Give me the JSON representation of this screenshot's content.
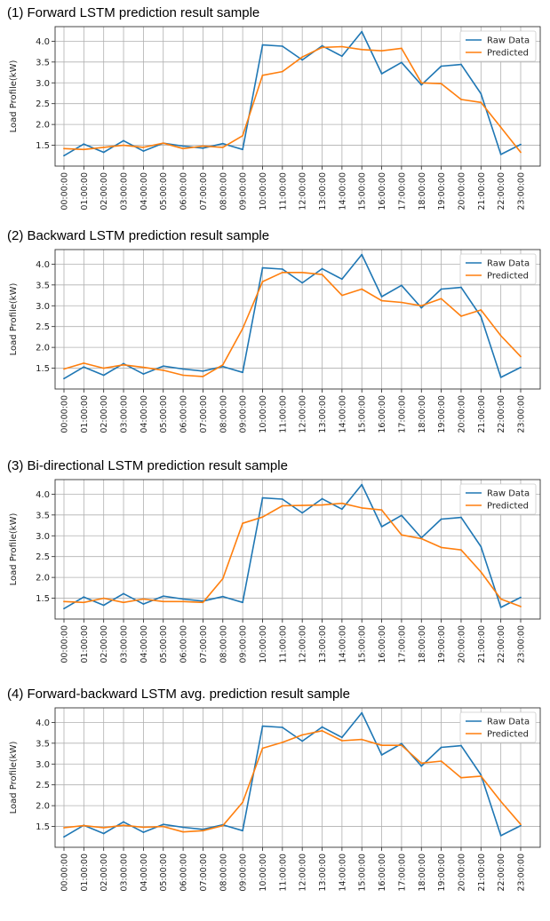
{
  "colors": {
    "raw": "#1f77b4",
    "predicted": "#ff7f0e",
    "grid": "#b0b0b0"
  },
  "chart_data": [
    {
      "type": "line",
      "title": "(1) Forward LSTM prediction result sample",
      "xlabel": "",
      "ylabel": "Load Profile(kW)",
      "ylim": [
        1.0,
        4.35
      ],
      "yticks": [
        1.5,
        2.0,
        2.5,
        3.0,
        3.5,
        4.0
      ],
      "ytick_labels": [
        "1.5",
        "2.0",
        "2.5",
        "3.0",
        "3.5",
        "4.0"
      ],
      "grid": true,
      "legend": "top-right",
      "categories": [
        "00:00:00",
        "01:00:00",
        "02:00:00",
        "03:00:00",
        "04:00:00",
        "05:00:00",
        "06:00:00",
        "07:00:00",
        "08:00:00",
        "09:00:00",
        "10:00:00",
        "11:00:00",
        "12:00:00",
        "13:00:00",
        "14:00:00",
        "15:00:00",
        "16:00:00",
        "17:00:00",
        "18:00:00",
        "19:00:00",
        "20:00:00",
        "21:00:00",
        "22:00:00",
        "23:00:00"
      ],
      "series": [
        {
          "name": "Raw Data",
          "color": "#1f77b4",
          "values": [
            1.25,
            1.53,
            1.33,
            1.61,
            1.36,
            1.55,
            1.48,
            1.43,
            1.54,
            1.4,
            3.91,
            3.88,
            3.55,
            3.89,
            3.64,
            4.23,
            3.22,
            3.49,
            2.95,
            3.4,
            3.44,
            2.74,
            1.28,
            1.52
          ]
        },
        {
          "name": "Predicted",
          "color": "#ff7f0e",
          "values": [
            1.42,
            1.4,
            1.45,
            1.5,
            1.45,
            1.55,
            1.42,
            1.48,
            1.45,
            1.73,
            3.18,
            3.27,
            3.62,
            3.85,
            3.87,
            3.8,
            3.77,
            3.83,
            3.0,
            2.98,
            2.6,
            2.53,
            1.93,
            1.33
          ]
        }
      ]
    },
    {
      "type": "line",
      "title": "(2) Backward LSTM prediction result sample",
      "xlabel": "",
      "ylabel": "Load Profile(kW)",
      "ylim": [
        1.0,
        4.35
      ],
      "yticks": [
        1.5,
        2.0,
        2.5,
        3.0,
        3.5,
        4.0
      ],
      "ytick_labels": [
        "1.5",
        "2.0",
        "2.5",
        "3.0",
        "3.5",
        "4.0"
      ],
      "grid": true,
      "legend": "top-right",
      "categories": [
        "00:00:00",
        "01:00:00",
        "02:00:00",
        "03:00:00",
        "04:00:00",
        "05:00:00",
        "06:00:00",
        "07:00:00",
        "08:00:00",
        "09:00:00",
        "10:00:00",
        "11:00:00",
        "12:00:00",
        "13:00:00",
        "14:00:00",
        "15:00:00",
        "16:00:00",
        "17:00:00",
        "18:00:00",
        "19:00:00",
        "20:00:00",
        "21:00:00",
        "22:00:00",
        "23:00:00"
      ],
      "series": [
        {
          "name": "Raw Data",
          "color": "#1f77b4",
          "values": [
            1.25,
            1.53,
            1.33,
            1.61,
            1.36,
            1.55,
            1.48,
            1.43,
            1.54,
            1.4,
            3.91,
            3.88,
            3.55,
            3.89,
            3.64,
            4.23,
            3.22,
            3.49,
            2.95,
            3.4,
            3.44,
            2.74,
            1.28,
            1.52
          ]
        },
        {
          "name": "Predicted",
          "color": "#ff7f0e",
          "values": [
            1.48,
            1.62,
            1.5,
            1.58,
            1.52,
            1.45,
            1.33,
            1.3,
            1.58,
            2.45,
            3.58,
            3.8,
            3.8,
            3.75,
            3.25,
            3.4,
            3.12,
            3.08,
            3.0,
            3.17,
            2.75,
            2.9,
            2.28,
            1.78
          ]
        }
      ]
    },
    {
      "type": "line",
      "title": "(3) Bi-directional LSTM prediction result sample",
      "xlabel": "",
      "ylabel": "Load Profile(kW)",
      "ylim": [
        1.0,
        4.35
      ],
      "yticks": [
        1.5,
        2.0,
        2.5,
        3.0,
        3.5,
        4.0
      ],
      "ytick_labels": [
        "1.5",
        "2.0",
        "2.5",
        "3.0",
        "3.5",
        "4.0"
      ],
      "grid": true,
      "legend": "top-right",
      "categories": [
        "00:00:00",
        "01:00:00",
        "02:00:00",
        "03:00:00",
        "04:00:00",
        "05:00:00",
        "06:00:00",
        "07:00:00",
        "08:00:00",
        "09:00:00",
        "10:00:00",
        "11:00:00",
        "12:00:00",
        "13:00:00",
        "14:00:00",
        "15:00:00",
        "16:00:00",
        "17:00:00",
        "18:00:00",
        "19:00:00",
        "20:00:00",
        "21:00:00",
        "22:00:00",
        "23:00:00"
      ],
      "series": [
        {
          "name": "Raw Data",
          "color": "#1f77b4",
          "values": [
            1.25,
            1.53,
            1.33,
            1.61,
            1.36,
            1.55,
            1.48,
            1.43,
            1.54,
            1.4,
            3.91,
            3.88,
            3.55,
            3.89,
            3.64,
            4.23,
            3.22,
            3.49,
            2.95,
            3.4,
            3.44,
            2.74,
            1.28,
            1.52
          ]
        },
        {
          "name": "Predicted",
          "color": "#ff7f0e",
          "values": [
            1.42,
            1.4,
            1.5,
            1.4,
            1.48,
            1.42,
            1.42,
            1.4,
            1.97,
            3.3,
            3.45,
            3.72,
            3.73,
            3.74,
            3.78,
            3.67,
            3.62,
            3.02,
            2.93,
            2.72,
            2.66,
            2.13,
            1.48,
            1.3
          ]
        }
      ]
    },
    {
      "type": "line",
      "title": "(4) Forward-backward LSTM avg. prediction result sample",
      "xlabel": "",
      "ylabel": "Load Profile(kW)",
      "ylim": [
        1.0,
        4.35
      ],
      "yticks": [
        1.5,
        2.0,
        2.5,
        3.0,
        3.5,
        4.0
      ],
      "ytick_labels": [
        "1.5",
        "2.0",
        "2.5",
        "3.0",
        "3.5",
        "4.0"
      ],
      "grid": true,
      "legend": "top-right",
      "categories": [
        "00:00:00",
        "01:00:00",
        "02:00:00",
        "03:00:00",
        "04:00:00",
        "05:00:00",
        "06:00:00",
        "07:00:00",
        "08:00:00",
        "09:00:00",
        "10:00:00",
        "11:00:00",
        "12:00:00",
        "13:00:00",
        "14:00:00",
        "15:00:00",
        "16:00:00",
        "17:00:00",
        "18:00:00",
        "19:00:00",
        "20:00:00",
        "21:00:00",
        "22:00:00",
        "23:00:00"
      ],
      "series": [
        {
          "name": "Raw Data",
          "color": "#1f77b4",
          "values": [
            1.25,
            1.53,
            1.33,
            1.61,
            1.36,
            1.55,
            1.48,
            1.43,
            1.54,
            1.4,
            3.91,
            3.88,
            3.55,
            3.89,
            3.64,
            4.23,
            3.22,
            3.49,
            2.95,
            3.4,
            3.44,
            2.74,
            1.28,
            1.52
          ]
        },
        {
          "name": "Predicted",
          "color": "#ff7f0e",
          "values": [
            1.47,
            1.52,
            1.47,
            1.53,
            1.48,
            1.5,
            1.37,
            1.4,
            1.52,
            2.08,
            3.38,
            3.52,
            3.7,
            3.8,
            3.56,
            3.59,
            3.45,
            3.45,
            3.02,
            3.07,
            2.67,
            2.71,
            2.1,
            1.55
          ]
        }
      ]
    }
  ]
}
